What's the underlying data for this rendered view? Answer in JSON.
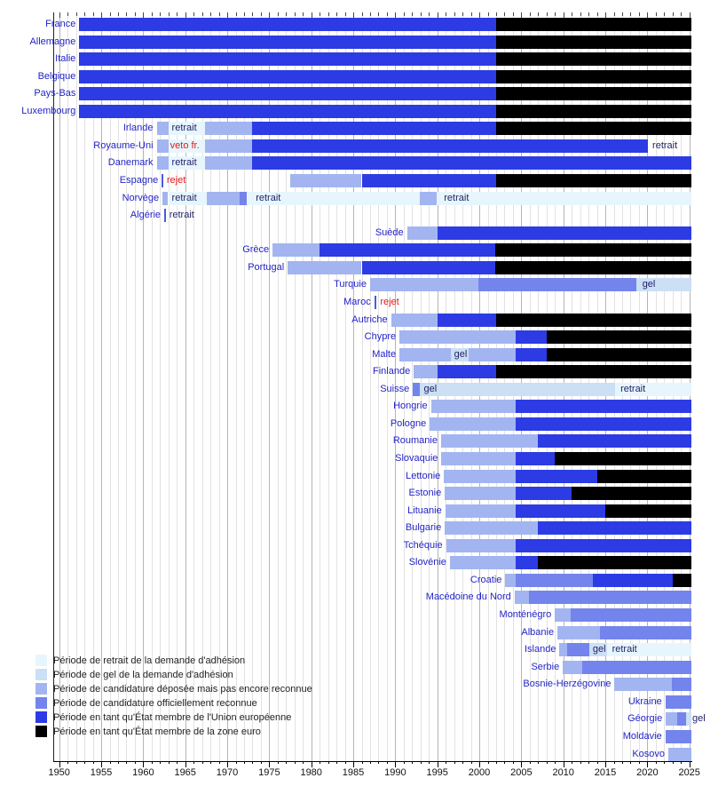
{
  "colors": {
    "ret": "#e7f6fd",
    "gel": "#cbdff5",
    "dep": "#a2b5f1",
    "rec": "#7384ec",
    "ue": "#2c3be4",
    "euro": "#000000",
    "tick": "#4a5be0",
    "country_label": "#2323c8",
    "annotation": "#222266",
    "annotation_red": "#e41818"
  },
  "legend": {
    "items": [
      {
        "key": "ret",
        "label": "Période de retrait de la demande d'adhésion"
      },
      {
        "key": "gel",
        "label": "Période de gel de la demande d'adhésion"
      },
      {
        "key": "dep",
        "label": "Période de candidature déposée mais pas encore reconnue"
      },
      {
        "key": "rec",
        "label": "Période de candidature officiellement reconnue"
      },
      {
        "key": "ue",
        "label": "Période en tant qu'État membre de l'Union européenne"
      },
      {
        "key": "euro",
        "label": "Période en tant qu'État membre de la zone euro"
      }
    ]
  },
  "chart_data": {
    "type": "timeline-gantt",
    "axis": {
      "start_year": 1949.3,
      "end_year": 2025.4,
      "tick_step": 1,
      "label_step": 5,
      "tick_labels": [
        "1950",
        "1955",
        "1960",
        "1965",
        "1970",
        "1975",
        "1980",
        "1985",
        "1990",
        "1995",
        "2000",
        "2005",
        "2010",
        "2015",
        "2020",
        "2025"
      ]
    },
    "rows": [
      {
        "country": "France",
        "segments": [
          {
            "t": "ue",
            "s": 1952.4,
            "e": 2002
          },
          {
            "t": "euro",
            "s": 2002,
            "e": 2025.2
          }
        ],
        "annotations": []
      },
      {
        "country": "Allemagne",
        "segments": [
          {
            "t": "ue",
            "s": 1952.4,
            "e": 2002
          },
          {
            "t": "euro",
            "s": 2002,
            "e": 2025.2
          }
        ],
        "annotations": []
      },
      {
        "country": "Italie",
        "segments": [
          {
            "t": "ue",
            "s": 1952.4,
            "e": 2002
          },
          {
            "t": "euro",
            "s": 2002,
            "e": 2025.2
          }
        ],
        "annotations": []
      },
      {
        "country": "Belgique",
        "segments": [
          {
            "t": "ue",
            "s": 1952.4,
            "e": 2002
          },
          {
            "t": "euro",
            "s": 2002,
            "e": 2025.2
          }
        ],
        "annotations": []
      },
      {
        "country": "Pays-Bas",
        "segments": [
          {
            "t": "ue",
            "s": 1952.4,
            "e": 2002
          },
          {
            "t": "euro",
            "s": 2002,
            "e": 2025.2
          }
        ],
        "annotations": []
      },
      {
        "country": "Luxembourg",
        "segments": [
          {
            "t": "ue",
            "s": 1952.4,
            "e": 2002
          },
          {
            "t": "euro",
            "s": 2002,
            "e": 2025.2
          }
        ],
        "annotations": []
      },
      {
        "country": "Irlande",
        "segments": [
          {
            "t": "ret",
            "s": 1963,
            "e": 1967.4
          },
          {
            "t": "dep",
            "s": 1961.6,
            "e": 1963
          },
          {
            "t": "dep",
            "s": 1967.4,
            "e": 1973
          },
          {
            "t": "ue",
            "s": 1973,
            "e": 2002
          },
          {
            "t": "euro",
            "s": 2002,
            "e": 2025.2
          }
        ],
        "annotations": [
          {
            "text": "retrait",
            "year": 1963.4,
            "red": false
          }
        ]
      },
      {
        "country": "Royaume-Uni",
        "segments": [
          {
            "t": "ret",
            "s": 1963,
            "e": 1967.4
          },
          {
            "t": "dep",
            "s": 1961.6,
            "e": 1963
          },
          {
            "t": "dep",
            "s": 1967.4,
            "e": 1973
          },
          {
            "t": "ue",
            "s": 1973,
            "e": 2020.1
          }
        ],
        "annotations": [
          {
            "text": "veto fr.",
            "year": 1963.2,
            "red": true
          },
          {
            "text": "retrait",
            "year": 2020.6,
            "red": false
          }
        ]
      },
      {
        "country": "Danemark",
        "segments": [
          {
            "t": "ret",
            "s": 1963,
            "e": 1967.4
          },
          {
            "t": "dep",
            "s": 1961.6,
            "e": 1963
          },
          {
            "t": "dep",
            "s": 1967.4,
            "e": 1973
          },
          {
            "t": "ue",
            "s": 1973,
            "e": 2025.2
          }
        ],
        "annotations": [
          {
            "text": "retrait",
            "year": 1963.4,
            "red": false
          }
        ]
      },
      {
        "country": "Espagne",
        "segments": [
          {
            "t": "tick",
            "s": 1962.2,
            "e": 1962.4
          },
          {
            "t": "dep",
            "s": 1977.5,
            "e": 1986
          },
          {
            "t": "ue",
            "s": 1986,
            "e": 2002
          },
          {
            "t": "euro",
            "s": 2002,
            "e": 2025.2
          }
        ],
        "annotations": [
          {
            "text": "rejet",
            "year": 1962.8,
            "red": true
          }
        ]
      },
      {
        "country": "Norvège",
        "segments": [
          {
            "t": "ret",
            "s": 1963,
            "e": 2025.2
          },
          {
            "t": "dep",
            "s": 1962.3,
            "e": 1962.9
          },
          {
            "t": "dep",
            "s": 1967.6,
            "e": 1971.5
          },
          {
            "t": "rec",
            "s": 1971.5,
            "e": 1972.3
          },
          {
            "t": "dep",
            "s": 1992.9,
            "e": 1994.9
          }
        ],
        "annotations": [
          {
            "text": "retrait",
            "year": 1963.4,
            "red": false
          },
          {
            "text": "retrait",
            "year": 1973.4,
            "red": false
          },
          {
            "text": "retrait",
            "year": 1995.8,
            "red": false
          }
        ]
      },
      {
        "country": "Algérie",
        "segments": [
          {
            "t": "tick",
            "s": 1962.5,
            "e": 1962.7
          }
        ],
        "annotations": [
          {
            "text": "retrait",
            "year": 1963.1,
            "red": false
          }
        ]
      },
      {
        "country": "Suède",
        "segments": [
          {
            "t": "dep",
            "s": 1991.4,
            "e": 1995
          },
          {
            "t": "ue",
            "s": 1995,
            "e": 2025.2
          }
        ],
        "annotations": []
      },
      {
        "country": "Grèce",
        "segments": [
          {
            "t": "dep",
            "s": 1975.4,
            "e": 1981
          },
          {
            "t": "ue",
            "s": 1981,
            "e": 2001.9
          },
          {
            "t": "euro",
            "s": 2001.9,
            "e": 2025.2
          }
        ],
        "annotations": []
      },
      {
        "country": "Portugal",
        "segments": [
          {
            "t": "dep",
            "s": 1977.2,
            "e": 1986
          },
          {
            "t": "ue",
            "s": 1986,
            "e": 2001.9
          },
          {
            "t": "euro",
            "s": 2001.9,
            "e": 2025.2
          }
        ],
        "annotations": []
      },
      {
        "country": "Turquie",
        "segments": [
          {
            "t": "dep",
            "s": 1987,
            "e": 1999.9
          },
          {
            "t": "rec",
            "s": 1999.9,
            "e": 2018.7
          },
          {
            "t": "gel",
            "s": 2018.7,
            "e": 2025.2
          }
        ],
        "annotations": [
          {
            "text": "gel",
            "year": 2019.4,
            "red": false
          }
        ]
      },
      {
        "country": "Maroc",
        "segments": [
          {
            "t": "tick",
            "s": 1987.5,
            "e": 1987.7
          }
        ],
        "annotations": [
          {
            "text": "rejet",
            "year": 1988.2,
            "red": true
          }
        ]
      },
      {
        "country": "Autriche",
        "segments": [
          {
            "t": "dep",
            "s": 1989.5,
            "e": 1995
          },
          {
            "t": "ue",
            "s": 1995,
            "e": 2002
          },
          {
            "t": "euro",
            "s": 2002,
            "e": 2025.2
          }
        ],
        "annotations": []
      },
      {
        "country": "Chypre",
        "segments": [
          {
            "t": "dep",
            "s": 1990.5,
            "e": 2004.33
          },
          {
            "t": "ue",
            "s": 2004.33,
            "e": 2008
          },
          {
            "t": "euro",
            "s": 2008,
            "e": 2025.2
          }
        ],
        "annotations": []
      },
      {
        "country": "Malte",
        "segments": [
          {
            "t": "dep",
            "s": 1990.5,
            "e": 1996.6
          },
          {
            "t": "gel",
            "s": 1996.6,
            "e": 1998.7
          },
          {
            "t": "dep",
            "s": 1998.7,
            "e": 2004.33
          },
          {
            "t": "ue",
            "s": 2004.33,
            "e": 2008
          },
          {
            "t": "euro",
            "s": 2008,
            "e": 2025.2
          }
        ],
        "annotations": [
          {
            "text": "gel",
            "year": 1997.0,
            "red": false
          }
        ]
      },
      {
        "country": "Finlande",
        "segments": [
          {
            "t": "dep",
            "s": 1992.2,
            "e": 1995
          },
          {
            "t": "ue",
            "s": 1995,
            "e": 2002
          },
          {
            "t": "euro",
            "s": 2002,
            "e": 2025.2
          }
        ],
        "annotations": []
      },
      {
        "country": "Suisse",
        "segments": [
          {
            "t": "rec",
            "s": 1992.1,
            "e": 1992.9
          },
          {
            "t": "gel",
            "s": 1992.9,
            "e": 2016.2
          },
          {
            "t": "ret",
            "s": 2016.2,
            "e": 2025.2
          }
        ],
        "annotations": [
          {
            "text": "gel",
            "year": 1993.4,
            "red": false
          },
          {
            "text": "retrait",
            "year": 2016.8,
            "red": false
          }
        ]
      },
      {
        "country": "Hongrie",
        "segments": [
          {
            "t": "dep",
            "s": 1994.25,
            "e": 2004.33
          },
          {
            "t": "ue",
            "s": 2004.33,
            "e": 2025.2
          }
        ],
        "annotations": []
      },
      {
        "country": "Pologne",
        "segments": [
          {
            "t": "dep",
            "s": 1994.1,
            "e": 2004.33
          },
          {
            "t": "ue",
            "s": 2004.33,
            "e": 2025.2
          }
        ],
        "annotations": []
      },
      {
        "country": "Roumanie",
        "segments": [
          {
            "t": "dep",
            "s": 1995.45,
            "e": 2007
          },
          {
            "t": "ue",
            "s": 2007,
            "e": 2025.2
          }
        ],
        "annotations": []
      },
      {
        "country": "Slovaquie",
        "segments": [
          {
            "t": "dep",
            "s": 1995.5,
            "e": 2004.33
          },
          {
            "t": "ue",
            "s": 2004.33,
            "e": 2009
          },
          {
            "t": "euro",
            "s": 2009,
            "e": 2025.2
          }
        ],
        "annotations": []
      },
      {
        "country": "Lettonie",
        "segments": [
          {
            "t": "dep",
            "s": 1995.8,
            "e": 2004.33
          },
          {
            "t": "ue",
            "s": 2004.33,
            "e": 2014
          },
          {
            "t": "euro",
            "s": 2014,
            "e": 2025.2
          }
        ],
        "annotations": []
      },
      {
        "country": "Estonie",
        "segments": [
          {
            "t": "dep",
            "s": 1995.9,
            "e": 2004.33
          },
          {
            "t": "ue",
            "s": 2004.33,
            "e": 2011
          },
          {
            "t": "euro",
            "s": 2011,
            "e": 2025.2
          }
        ],
        "annotations": []
      },
      {
        "country": "Lituanie",
        "segments": [
          {
            "t": "dep",
            "s": 1995.95,
            "e": 2004.33
          },
          {
            "t": "ue",
            "s": 2004.33,
            "e": 2015
          },
          {
            "t": "euro",
            "s": 2015,
            "e": 2025.2
          }
        ],
        "annotations": []
      },
      {
        "country": "Bulgarie",
        "segments": [
          {
            "t": "dep",
            "s": 1995.9,
            "e": 2007
          },
          {
            "t": "ue",
            "s": 2007,
            "e": 2025.2
          }
        ],
        "annotations": []
      },
      {
        "country": "Tchéquie",
        "segments": [
          {
            "t": "dep",
            "s": 1996.05,
            "e": 2004.33
          },
          {
            "t": "ue",
            "s": 2004.33,
            "e": 2025.2
          }
        ],
        "annotations": []
      },
      {
        "country": "Slovénie",
        "segments": [
          {
            "t": "dep",
            "s": 1996.5,
            "e": 2004.33
          },
          {
            "t": "ue",
            "s": 2004.33,
            "e": 2007
          },
          {
            "t": "euro",
            "s": 2007,
            "e": 2025.2
          }
        ],
        "annotations": []
      },
      {
        "country": "Croatie",
        "segments": [
          {
            "t": "dep",
            "s": 2003.1,
            "e": 2004.33
          },
          {
            "t": "rec",
            "s": 2004.33,
            "e": 2013.5
          },
          {
            "t": "ue",
            "s": 2013.5,
            "e": 2023
          },
          {
            "t": "euro",
            "s": 2023,
            "e": 2025.2
          }
        ],
        "annotations": []
      },
      {
        "country": "Macédoine du Nord",
        "segments": [
          {
            "t": "dep",
            "s": 2004.2,
            "e": 2005.9
          },
          {
            "t": "rec",
            "s": 2005.9,
            "e": 2025.2
          }
        ],
        "annotations": []
      },
      {
        "country": "Monténégro",
        "segments": [
          {
            "t": "dep",
            "s": 2009.0,
            "e": 2010.9
          },
          {
            "t": "rec",
            "s": 2010.9,
            "e": 2025.2
          }
        ],
        "annotations": []
      },
      {
        "country": "Albanie",
        "segments": [
          {
            "t": "dep",
            "s": 2009.3,
            "e": 2014.4
          },
          {
            "t": "rec",
            "s": 2014.4,
            "e": 2025.2
          }
        ],
        "annotations": []
      },
      {
        "country": "Islande",
        "segments": [
          {
            "t": "ret",
            "s": 2015.2,
            "e": 2025.2
          },
          {
            "t": "dep",
            "s": 2009.55,
            "e": 2010.5
          },
          {
            "t": "rec",
            "s": 2010.5,
            "e": 2013.1
          },
          {
            "t": "gel",
            "s": 2013.1,
            "e": 2015.2
          }
        ],
        "annotations": [
          {
            "text": "gel",
            "year": 2013.5,
            "red": false
          },
          {
            "text": "retrait",
            "year": 2015.8,
            "red": false
          }
        ]
      },
      {
        "country": "Serbie",
        "segments": [
          {
            "t": "dep",
            "s": 2009.95,
            "e": 2012.2
          },
          {
            "t": "rec",
            "s": 2012.2,
            "e": 2025.2
          }
        ],
        "annotations": []
      },
      {
        "country": "Bosnie-Herzégovine",
        "segments": [
          {
            "t": "dep",
            "s": 2016.1,
            "e": 2022.9
          },
          {
            "t": "rec",
            "s": 2022.9,
            "e": 2025.2
          }
        ],
        "annotations": []
      },
      {
        "country": "Ukraine",
        "segments": [
          {
            "t": "rec",
            "s": 2022.15,
            "e": 2025.2
          }
        ],
        "annotations": []
      },
      {
        "country": "Géorgie",
        "segments": [
          {
            "t": "dep",
            "s": 2022.2,
            "e": 2023.6
          },
          {
            "t": "rec",
            "s": 2023.6,
            "e": 2024.6
          },
          {
            "t": "gel",
            "s": 2024.6,
            "e": 2025.2
          }
        ],
        "annotations": [
          {
            "text": "gel",
            "year": 2025.35,
            "red": false
          }
        ]
      },
      {
        "country": "Moldavie",
        "segments": [
          {
            "t": "rec",
            "s": 2022.15,
            "e": 2025.2
          }
        ],
        "annotations": []
      },
      {
        "country": "Kosovo",
        "segments": [
          {
            "t": "dep",
            "s": 2022.5,
            "e": 2025.2
          }
        ],
        "annotations": []
      }
    ]
  }
}
